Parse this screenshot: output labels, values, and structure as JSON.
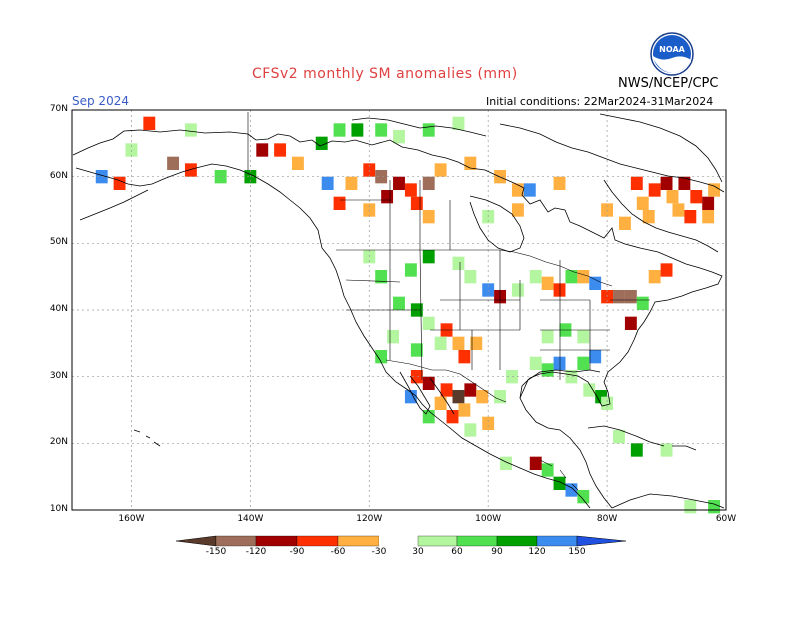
{
  "title": "CFSv2 monthly SM anomalies (mm)",
  "valid_month": "Sep 2024",
  "initial_conditions": "Initial conditions: 22Mar2024-31Mar2024",
  "agency": "NWS/NCEP/CPC",
  "logo_text": "NOAA",
  "colors": {
    "coast": "#000000",
    "grid": "#999999",
    "neg150": "#5a3a2a",
    "neg120": "#9e6e5a",
    "neg90": "#a00000",
    "neg60": "#ff3000",
    "neg30": "#ffb040",
    "pos30": "#b4f5a0",
    "pos60": "#50e050",
    "pos90": "#00a000",
    "pos120": "#3c8cf0",
    "pos150": "#2050e0"
  },
  "map": {
    "lat_labels": [
      "70N",
      "60N",
      "50N",
      "40N",
      "30N",
      "20N",
      "10N"
    ],
    "lon_labels": [
      "160W",
      "140W",
      "120W",
      "100W",
      "80W",
      "60W"
    ],
    "lon_range": [
      -170,
      -60
    ],
    "lat_range": [
      10,
      70
    ]
  },
  "colorbar": {
    "ticks": [
      "-150",
      "-120",
      "-90",
      "-60",
      "-30",
      "30",
      "60",
      "90",
      "120",
      "150"
    ]
  },
  "anomaly_cells": [
    {
      "lon": -125,
      "lat": 67,
      "v": 60
    },
    {
      "lon": -122,
      "lat": 67,
      "v": 90
    },
    {
      "lon": -118,
      "lat": 67,
      "v": 60
    },
    {
      "lon": -115,
      "lat": 66,
      "v": 30
    },
    {
      "lon": -110,
      "lat": 67,
      "v": 60
    },
    {
      "lon": -105,
      "lat": 68,
      "v": 30
    },
    {
      "lon": -128,
      "lat": 65,
      "v": 90
    },
    {
      "lon": -135,
      "lat": 64,
      "v": -60
    },
    {
      "lon": -138,
      "lat": 64,
      "v": -90
    },
    {
      "lon": -132,
      "lat": 62,
      "v": -30
    },
    {
      "lon": -157,
      "lat": 68,
      "v": -60
    },
    {
      "lon": -150,
      "lat": 67,
      "v": 30
    },
    {
      "lon": -160,
      "lat": 64,
      "v": 30
    },
    {
      "lon": -153,
      "lat": 62,
      "v": -120
    },
    {
      "lon": -150,
      "lat": 61,
      "v": -60
    },
    {
      "lon": -165,
      "lat": 60,
      "v": 120
    },
    {
      "lon": -162,
      "lat": 59,
      "v": -60
    },
    {
      "lon": -145,
      "lat": 60,
      "v": 60
    },
    {
      "lon": -140,
      "lat": 60,
      "v": 90
    },
    {
      "lon": -120,
      "lat": 61,
      "v": -60
    },
    {
      "lon": -118,
      "lat": 60,
      "v": -120
    },
    {
      "lon": -115,
      "lat": 59,
      "v": -90
    },
    {
      "lon": -113,
      "lat": 58,
      "v": -60
    },
    {
      "lon": -110,
      "lat": 59,
      "v": -120
    },
    {
      "lon": -117,
      "lat": 57,
      "v": -90
    },
    {
      "lon": -112,
      "lat": 56,
      "v": -60
    },
    {
      "lon": -123,
      "lat": 59,
      "v": -30
    },
    {
      "lon": -127,
      "lat": 59,
      "v": 120
    },
    {
      "lon": -125,
      "lat": 56,
      "v": -60
    },
    {
      "lon": -120,
      "lat": 55,
      "v": -30
    },
    {
      "lon": -108,
      "lat": 61,
      "v": -30
    },
    {
      "lon": -103,
      "lat": 62,
      "v": -30
    },
    {
      "lon": -98,
      "lat": 60,
      "v": -30
    },
    {
      "lon": -95,
      "lat": 58,
      "v": -30
    },
    {
      "lon": -93,
      "lat": 58,
      "v": 120
    },
    {
      "lon": -88,
      "lat": 59,
      "v": -30
    },
    {
      "lon": -110,
      "lat": 54,
      "v": -30
    },
    {
      "lon": -100,
      "lat": 54,
      "v": 30
    },
    {
      "lon": -95,
      "lat": 55,
      "v": -30
    },
    {
      "lon": -80,
      "lat": 55,
      "v": -30
    },
    {
      "lon": -77,
      "lat": 53,
      "v": -30
    },
    {
      "lon": -72,
      "lat": 58,
      "v": -60
    },
    {
      "lon": -70,
      "lat": 59,
      "v": -90
    },
    {
      "lon": -67,
      "lat": 59,
      "v": -90
    },
    {
      "lon": -65,
      "lat": 57,
      "v": -60
    },
    {
      "lon": -69,
      "lat": 57,
      "v": -30
    },
    {
      "lon": -74,
      "lat": 56,
      "v": -30
    },
    {
      "lon": -63,
      "lat": 56,
      "v": -90
    },
    {
      "lon": -62,
      "lat": 58,
      "v": -30
    },
    {
      "lon": -68,
      "lat": 55,
      "v": -30
    },
    {
      "lon": -73,
      "lat": 54,
      "v": -30
    },
    {
      "lon": -66,
      "lat": 54,
      "v": -60
    },
    {
      "lon": -75,
      "lat": 59,
      "v": -60
    },
    {
      "lon": -63,
      "lat": 54,
      "v": -30
    },
    {
      "lon": -120,
      "lat": 48,
      "v": 30
    },
    {
      "lon": -118,
      "lat": 45,
      "v": 60
    },
    {
      "lon": -113,
      "lat": 46,
      "v": 60
    },
    {
      "lon": -110,
      "lat": 48,
      "v": 90
    },
    {
      "lon": -105,
      "lat": 47,
      "v": 30
    },
    {
      "lon": -103,
      "lat": 45,
      "v": 30
    },
    {
      "lon": -100,
      "lat": 43,
      "v": 120
    },
    {
      "lon": -98,
      "lat": 42,
      "v": -90
    },
    {
      "lon": -95,
      "lat": 43,
      "v": 30
    },
    {
      "lon": -92,
      "lat": 45,
      "v": 30
    },
    {
      "lon": -90,
      "lat": 44,
      "v": -30
    },
    {
      "lon": -88,
      "lat": 43,
      "v": -60
    },
    {
      "lon": -86,
      "lat": 45,
      "v": 60
    },
    {
      "lon": -84,
      "lat": 45,
      "v": -30
    },
    {
      "lon": -82,
      "lat": 44,
      "v": 120
    },
    {
      "lon": -80,
      "lat": 42,
      "v": -60
    },
    {
      "lon": -78,
      "lat": 42,
      "v": -120
    },
    {
      "lon": -76,
      "lat": 42,
      "v": -120
    },
    {
      "lon": -74,
      "lat": 41,
      "v": 60
    },
    {
      "lon": -72,
      "lat": 45,
      "v": -30
    },
    {
      "lon": -70,
      "lat": 46,
      "v": -60
    },
    {
      "lon": -76,
      "lat": 38,
      "v": -90
    },
    {
      "lon": -115,
      "lat": 41,
      "v": 60
    },
    {
      "lon": -112,
      "lat": 40,
      "v": 90
    },
    {
      "lon": -110,
      "lat": 38,
      "v": 30
    },
    {
      "lon": -107,
      "lat": 37,
      "v": -60
    },
    {
      "lon": -105,
      "lat": 35,
      "v": -30
    },
    {
      "lon": -104,
      "lat": 33,
      "v": -60
    },
    {
      "lon": -102,
      "lat": 35,
      "v": -30
    },
    {
      "lon": -108,
      "lat": 35,
      "v": 30
    },
    {
      "lon": -112,
      "lat": 34,
      "v": 60
    },
    {
      "lon": -116,
      "lat": 36,
      "v": 30
    },
    {
      "lon": -118,
      "lat": 33,
      "v": 60
    },
    {
      "lon": -112,
      "lat": 30,
      "v": -60
    },
    {
      "lon": -110,
      "lat": 29,
      "v": -90
    },
    {
      "lon": -107,
      "lat": 28,
      "v": -60
    },
    {
      "lon": -105,
      "lat": 27,
      "v": -150
    },
    {
      "lon": -103,
      "lat": 28,
      "v": -90
    },
    {
      "lon": -108,
      "lat": 26,
      "v": -30
    },
    {
      "lon": -106,
      "lat": 24,
      "v": -60
    },
    {
      "lon": -104,
      "lat": 25,
      "v": -30
    },
    {
      "lon": -101,
      "lat": 27,
      "v": -30
    },
    {
      "lon": -100,
      "lat": 23,
      "v": -30
    },
    {
      "lon": -103,
      "lat": 22,
      "v": 30
    },
    {
      "lon": -110,
      "lat": 24,
      "v": 60
    },
    {
      "lon": -113,
      "lat": 27,
      "v": 120
    },
    {
      "lon": -98,
      "lat": 27,
      "v": 30
    },
    {
      "lon": -96,
      "lat": 30,
      "v": 30
    },
    {
      "lon": -92,
      "lat": 32,
      "v": 30
    },
    {
      "lon": -90,
      "lat": 31,
      "v": 60
    },
    {
      "lon": -88,
      "lat": 32,
      "v": 120
    },
    {
      "lon": -86,
      "lat": 30,
      "v": 30
    },
    {
      "lon": -84,
      "lat": 32,
      "v": 60
    },
    {
      "lon": -82,
      "lat": 33,
      "v": 120
    },
    {
      "lon": -83,
      "lat": 28,
      "v": 30
    },
    {
      "lon": -81,
      "lat": 27,
      "v": 90
    },
    {
      "lon": -80,
      "lat": 26,
      "v": 30
    },
    {
      "lon": -90,
      "lat": 36,
      "v": 30
    },
    {
      "lon": -87,
      "lat": 37,
      "v": 60
    },
    {
      "lon": -84,
      "lat": 36,
      "v": 30
    },
    {
      "lon": -90,
      "lat": 16,
      "v": 60
    },
    {
      "lon": -88,
      "lat": 14,
      "v": 90
    },
    {
      "lon": -86,
      "lat": 13,
      "v": 120
    },
    {
      "lon": -84,
      "lat": 12,
      "v": 60
    },
    {
      "lon": -92,
      "lat": 17,
      "v": -90
    },
    {
      "lon": -97,
      "lat": 17,
      "v": 30
    },
    {
      "lon": -75,
      "lat": 19,
      "v": 90
    },
    {
      "lon": -78,
      "lat": 21,
      "v": 30
    },
    {
      "lon": -70,
      "lat": 19,
      "v": 30
    },
    {
      "lon": -66,
      "lat": 10.5,
      "v": 30
    },
    {
      "lon": -62,
      "lat": 10.5,
      "v": 60
    }
  ]
}
